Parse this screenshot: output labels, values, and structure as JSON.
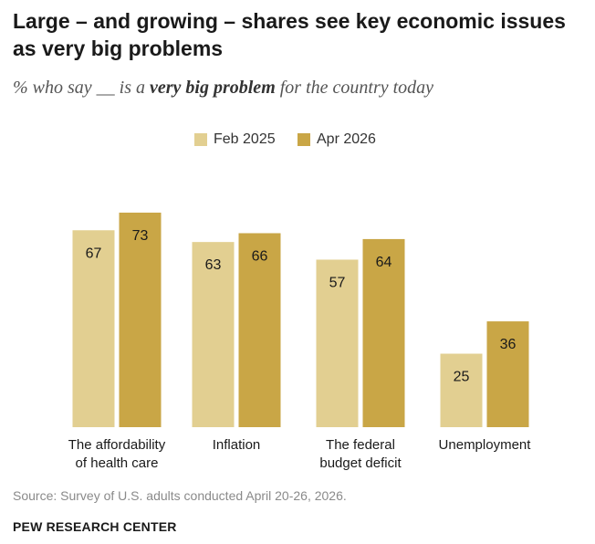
{
  "header": {
    "title": "Large – and growing – shares see key economic issues as very big problems",
    "subtitle_prefix": "% who say __ is a ",
    "subtitle_emphasis": "very big problem",
    "subtitle_suffix": " for the country today"
  },
  "footer": {
    "source": "Source: Survey of U.S. adults conducted April 20-26, 2026.",
    "org": "PEW RESEARCH CENTER"
  },
  "colors": {
    "series_feb": "#e2cf91",
    "series_apr": "#c9a646",
    "label_text": "#1a1a1a"
  },
  "chart_data": {
    "type": "bar",
    "categories": [
      [
        "The affordability",
        "of health care"
      ],
      [
        "Inflation"
      ],
      [
        "The federal",
        "budget deficit"
      ],
      [
        "Unemployment"
      ]
    ],
    "series": [
      {
        "name": "Feb 2025",
        "values": [
          67,
          63,
          57,
          25
        ]
      },
      {
        "name": "Apr 2026",
        "values": [
          73,
          66,
          64,
          36
        ]
      }
    ],
    "ylim": [
      0,
      80
    ],
    "grid": false,
    "legend": "top-center",
    "xlabel": "",
    "ylabel": ""
  }
}
